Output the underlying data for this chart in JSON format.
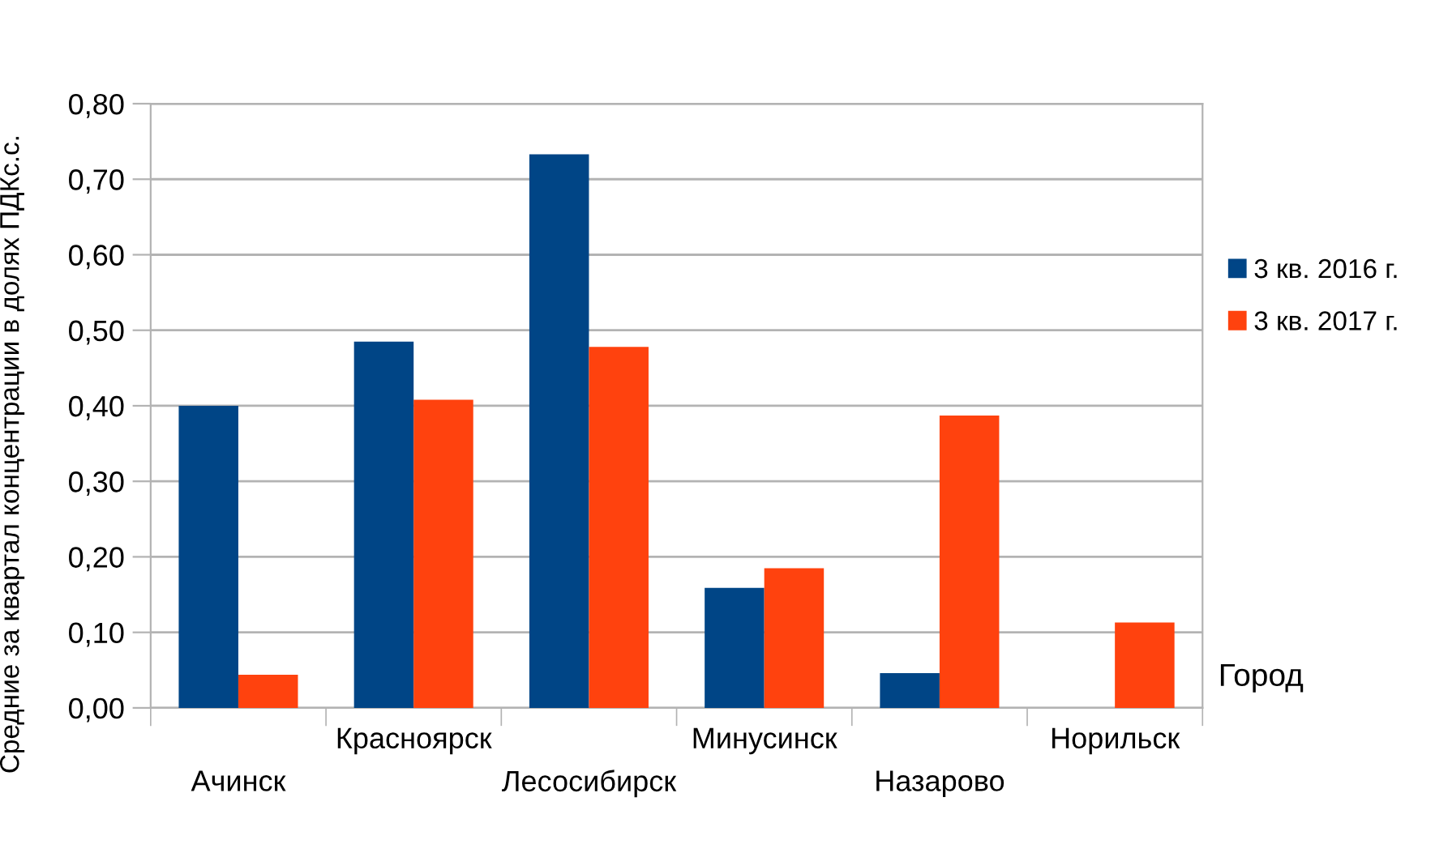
{
  "chart_data": {
    "type": "bar",
    "categories": [
      "Ачинск",
      "Красноярск",
      "Лесосибирск",
      "Минусинск",
      "Назарово",
      "Норильск"
    ],
    "series": [
      {
        "name": "3 кв. 2016 г.",
        "color": "#004586",
        "values": [
          0.4,
          0.485,
          0.733,
          0.159,
          0.046,
          null
        ]
      },
      {
        "name": "3 кв. 2017 г.",
        "color": "#ff420e",
        "values": [
          0.044,
          0.408,
          0.478,
          0.185,
          0.387,
          0.113
        ]
      }
    ],
    "xlabel": "Город",
    "ylabel": "Средние за квартал концентрации в долях ПДКс.с.",
    "ylim": [
      0,
      0.8
    ],
    "yticks": [
      {
        "value": 0,
        "label": "0,00"
      },
      {
        "value": 0.1,
        "label": "0,10"
      },
      {
        "value": 0.2,
        "label": "0,20"
      },
      {
        "value": 0.3,
        "label": "0,30"
      },
      {
        "value": 0.4,
        "label": "0,40"
      },
      {
        "value": 0.5,
        "label": "0,50"
      },
      {
        "value": 0.6,
        "label": "0,60"
      },
      {
        "value": 0.7,
        "label": "0,70"
      },
      {
        "value": 0.8,
        "label": "0,80"
      }
    ],
    "grid": "y",
    "legend": "right"
  }
}
